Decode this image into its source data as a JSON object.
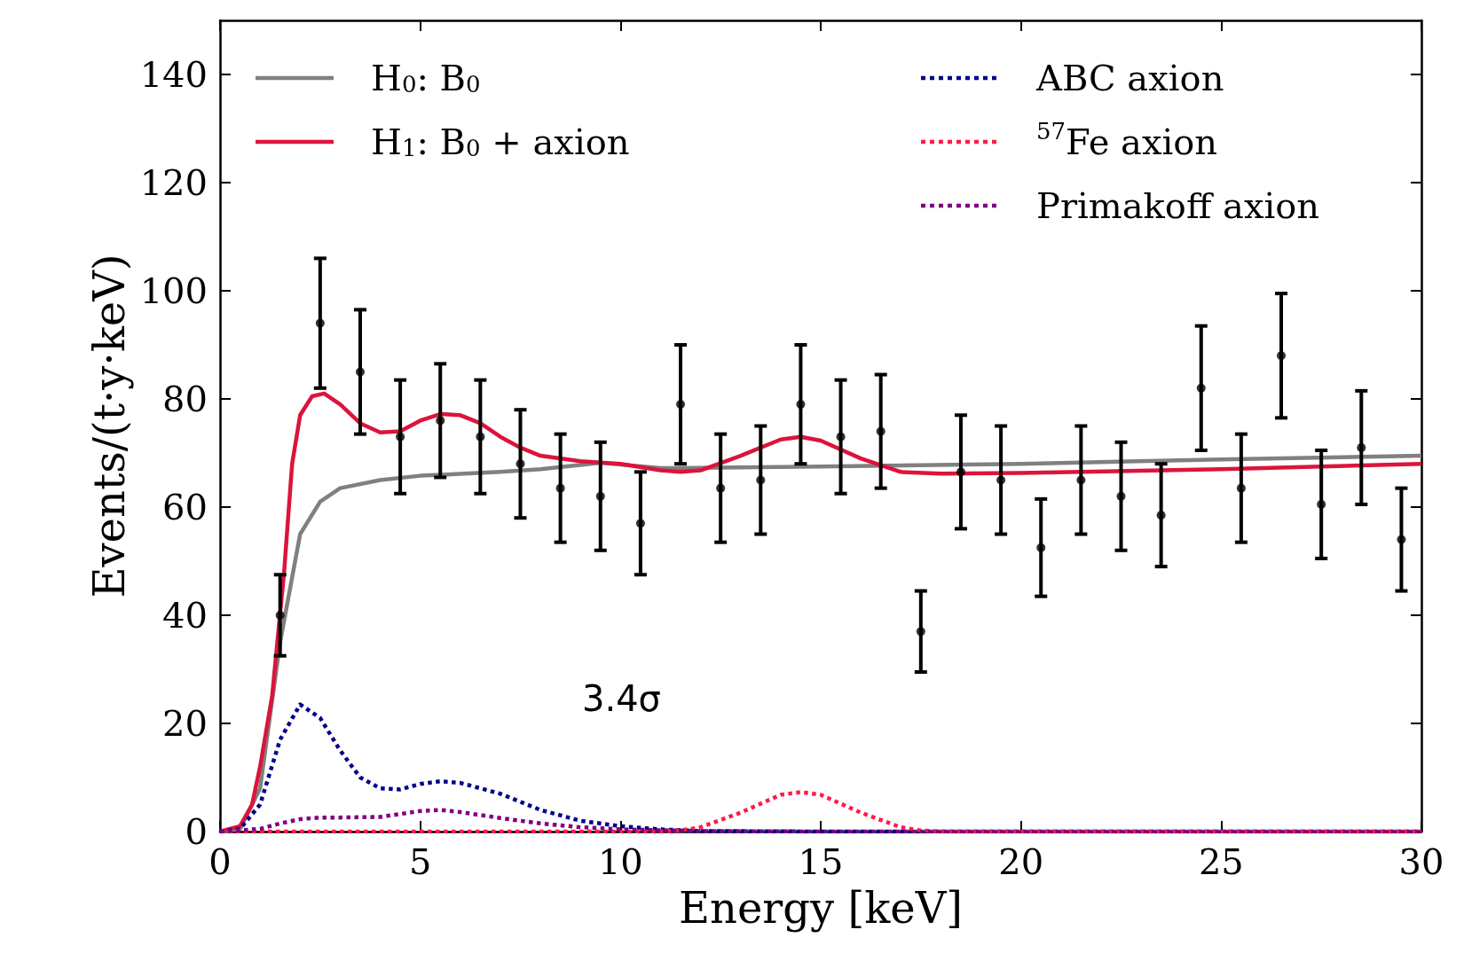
{
  "chart_data": {
    "type": "line",
    "xlabel": "Energy [keV]",
    "ylabel": "Events/(t·y·keV)",
    "xlim": [
      0,
      30
    ],
    "ylim": [
      0,
      150
    ],
    "xticks": [
      0,
      5,
      10,
      15,
      20,
      25,
      30
    ],
    "yticks": [
      0,
      20,
      40,
      60,
      80,
      100,
      120,
      140
    ],
    "grid": false,
    "legend": "top",
    "annotations": [
      "3.4σ"
    ],
    "series": [
      {
        "name": "H$_{0}$: B$_{0}$",
        "color": "#808080",
        "line_style": "solid",
        "x": [
          0,
          0.5,
          1,
          1.5,
          2,
          2.5,
          3,
          4,
          5,
          7,
          8,
          9.5,
          11,
          15,
          20,
          25,
          30
        ],
        "values": [
          0,
          0.5,
          8,
          35,
          55,
          61,
          63.5,
          65,
          65.8,
          66.5,
          67,
          68.2,
          67.2,
          67.5,
          68,
          68.8,
          69.5
        ]
      },
      {
        "name": "H$_{1}$: B$_{0}$ + axion",
        "color": "#dc143c",
        "line_style": "solid",
        "x": [
          0,
          0.5,
          0.8,
          1,
          1.3,
          1.6,
          1.8,
          2,
          2.3,
          2.6,
          3,
          3.5,
          4,
          4.5,
          5,
          5.5,
          6,
          6.5,
          7,
          7.5,
          8,
          9,
          10,
          11,
          11.5,
          12,
          13,
          14,
          14.5,
          15,
          16,
          17,
          18,
          20,
          25,
          30
        ],
        "values": [
          0,
          1,
          5,
          12,
          25,
          48,
          68,
          77,
          80.5,
          81,
          79,
          75.5,
          73.8,
          74,
          76,
          77.2,
          77,
          75.5,
          73,
          71,
          69.5,
          68.5,
          68,
          66.8,
          66.5,
          66.8,
          69.5,
          72.5,
          73,
          72.3,
          69,
          66.5,
          66.2,
          66.3,
          67,
          68
        ]
      },
      {
        "name": "ABC axion",
        "color": "#00008b",
        "line_style": "dotted",
        "x": [
          0,
          0.5,
          1,
          1.5,
          2,
          2.5,
          3,
          3.5,
          4,
          4.5,
          5,
          5.5,
          6,
          7,
          8,
          9,
          10,
          11,
          12,
          15,
          30
        ],
        "values": [
          0,
          0.5,
          5,
          17,
          23.5,
          21,
          15,
          10,
          8,
          7.8,
          8.8,
          9.3,
          9,
          7,
          4,
          2,
          1,
          0.4,
          0.1,
          0,
          0
        ]
      },
      {
        "name": "$^{57}$Fe axion",
        "color": "#ff1a4a",
        "line_style": "dotted",
        "x": [
          0,
          11,
          11.5,
          12,
          13,
          14,
          14.5,
          15,
          16,
          17,
          17.5,
          18,
          30
        ],
        "values": [
          0,
          0,
          0.2,
          0.8,
          3.5,
          6.8,
          7.3,
          6.8,
          3.5,
          0.8,
          0.2,
          0,
          0
        ]
      },
      {
        "name": "Primakoff axion",
        "color": "#800080",
        "line_style": "dotted",
        "x": [
          0,
          1,
          1.5,
          2,
          2.5,
          3,
          4,
          5,
          5.5,
          6,
          7,
          8,
          9,
          10,
          12,
          15,
          30
        ],
        "values": [
          0,
          0.5,
          1.5,
          2.3,
          2.6,
          2.6,
          2.7,
          3.8,
          4,
          3.6,
          2.5,
          1.5,
          0.8,
          0.4,
          0.1,
          0,
          0
        ]
      },
      {
        "type": "scatter",
        "color": "#000000",
        "marker": "circle",
        "x": [
          1.5,
          2.5,
          3.5,
          4.5,
          5.5,
          6.5,
          7.5,
          8.5,
          9.5,
          10.5,
          11.5,
          12.5,
          13.5,
          14.5,
          15.5,
          16.5,
          17.5,
          18.5,
          19.5,
          20.5,
          21.5,
          22.5,
          23.5,
          24.5,
          25.5,
          26.5,
          27.5,
          28.5,
          29.5
        ],
        "values": [
          40,
          94,
          85,
          73,
          76,
          73,
          68,
          63.5,
          62,
          57,
          79,
          63.5,
          65,
          79,
          73,
          74,
          37,
          66.5,
          65,
          52.5,
          65,
          62,
          58.5,
          82,
          63.5,
          88,
          60.5,
          71,
          54
        ],
        "errors": [
          7.5,
          12,
          11.5,
          10.5,
          10.5,
          10.5,
          10,
          10,
          10,
          9.5,
          11,
          10,
          10,
          11,
          10.5,
          10.5,
          7.5,
          10.5,
          10,
          9,
          10,
          10,
          9.5,
          11.5,
          10,
          11.5,
          10,
          10.5,
          9.5
        ]
      }
    ]
  }
}
